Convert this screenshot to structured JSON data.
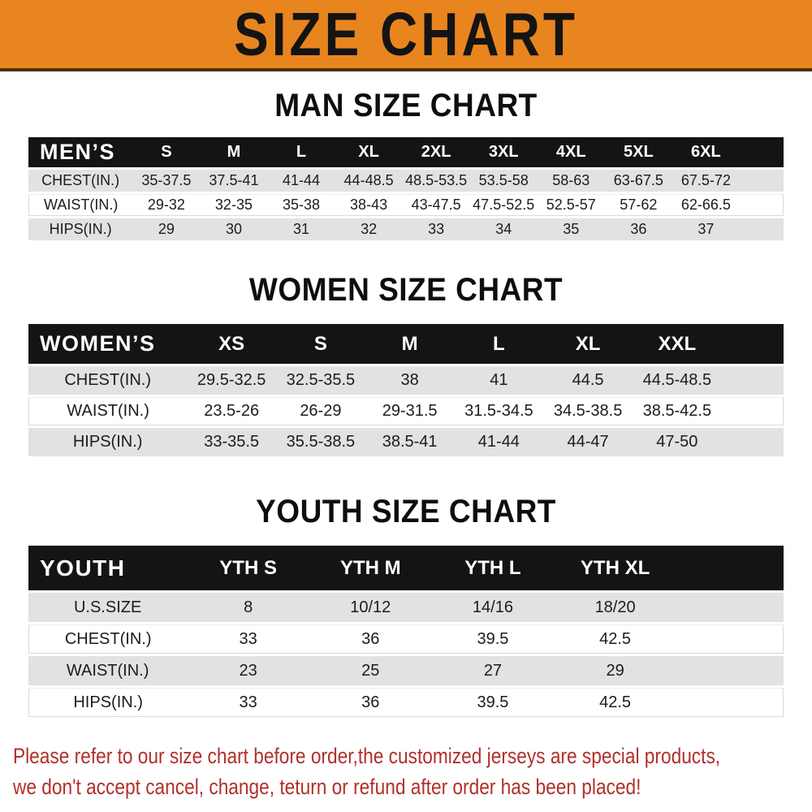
{
  "banner": {
    "title": "SIZE CHART"
  },
  "sections": [
    {
      "heading": "MAN SIZE CHART",
      "table": {
        "header_label": "MEN’S",
        "columns": [
          "S",
          "M",
          "L",
          "XL",
          "2XL",
          "3XL",
          "4XL",
          "5XL",
          "6XL"
        ],
        "rows": [
          {
            "label": "CHEST(IN.)",
            "values": [
              "35-37.5",
              "37.5-41",
              "41-44",
              "44-48.5",
              "48.5-53.5",
              "53.5-58",
              "58-63",
              "63-67.5",
              "67.5-72"
            ]
          },
          {
            "label": "WAIST(IN.)",
            "values": [
              "29-32",
              "32-35",
              "35-38",
              "38-43",
              "43-47.5",
              "47.5-52.5",
              "52.5-57",
              "57-62",
              "62-66.5"
            ]
          },
          {
            "label": "HIPS(IN.)",
            "values": [
              "29",
              "30",
              "31",
              "32",
              "33",
              "34",
              "35",
              "36",
              "37"
            ]
          }
        ]
      }
    },
    {
      "heading": "WOMEN SIZE CHART",
      "table": {
        "header_label": "WOMEN’S",
        "columns": [
          "XS",
          "S",
          "M",
          "L",
          "XL",
          "XXL"
        ],
        "rows": [
          {
            "label": "CHEST(IN.)",
            "values": [
              "29.5-32.5",
              "32.5-35.5",
              "38",
              "41",
              "44.5",
              "44.5-48.5"
            ]
          },
          {
            "label": "WAIST(IN.)",
            "values": [
              "23.5-26",
              "26-29",
              "29-31.5",
              "31.5-34.5",
              "34.5-38.5",
              "38.5-42.5"
            ]
          },
          {
            "label": "HIPS(IN.)",
            "values": [
              "33-35.5",
              "35.5-38.5",
              "38.5-41",
              "41-44",
              "44-47",
              "47-50"
            ]
          }
        ]
      }
    },
    {
      "heading": "YOUTH SIZE CHART",
      "table": {
        "header_label": "YOUTH",
        "columns": [
          "YTH S",
          "YTH M",
          "YTH L",
          "YTH XL"
        ],
        "rows": [
          {
            "label": "U.S.SIZE",
            "values": [
              "8",
              "10/12",
              "14/16",
              "18/20"
            ]
          },
          {
            "label": "CHEST(IN.)",
            "values": [
              "33",
              "36",
              "39.5",
              "42.5"
            ]
          },
          {
            "label": "WAIST(IN.)",
            "values": [
              "23",
              "25",
              "27",
              "29"
            ]
          },
          {
            "label": "HIPS(IN.)",
            "values": [
              "33",
              "36",
              "39.5",
              "42.5"
            ]
          }
        ]
      }
    }
  ],
  "disclaimer": {
    "line1": "Please refer to our size chart before order,the customized jerseys are special products,",
    "line2": "we don't accept cancel, change, teturn or refund after order has been placed!"
  },
  "colors": {
    "banner_bg": "#E8851E",
    "banner_border": "#4F2F0D",
    "header_bar_bg": "#141414",
    "header_bar_text": "#FFFFFF",
    "alt_row_bg": "#E2E2E2",
    "disclaimer_text": "#B2302A"
  }
}
